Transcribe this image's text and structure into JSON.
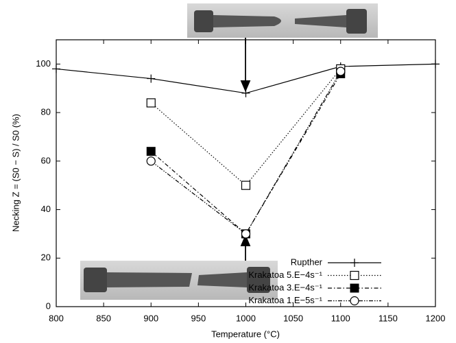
{
  "chart_data": {
    "type": "line",
    "x_label": "Temperature (°C)",
    "y_label": "Necking Z = (S0 − S) / S0 (%)",
    "xlim": [
      800,
      1200
    ],
    "xticks": [
      800,
      850,
      900,
      950,
      1000,
      1050,
      1100,
      1150,
      1200
    ],
    "ylim": [
      0,
      110
    ],
    "yticks": [
      0,
      20,
      40,
      60,
      80,
      100
    ],
    "legend": "lower right",
    "series": [
      {
        "name": "Rupther",
        "color": "#000000",
        "marker": "plus",
        "dash": "solid",
        "x": [
          800,
          900,
          1000,
          1100,
          1200
        ],
        "values": [
          98,
          94,
          88,
          99,
          100
        ]
      },
      {
        "name": "Krakatoa 5.E−4s⁻¹",
        "color": "#000000",
        "marker": "open-square",
        "dash": "dotted",
        "x": [
          900,
          1000,
          1100
        ],
        "values": [
          84,
          50,
          98
        ]
      },
      {
        "name": "Krakatoa 3.E−4s⁻¹",
        "color": "#000000",
        "marker": "filled-square",
        "dash": "dash-dot",
        "x": [
          900,
          1000,
          1100
        ],
        "values": [
          64,
          30,
          96
        ]
      },
      {
        "name": "Krakatoa 1.E−5s⁻¹",
        "color": "#000000",
        "marker": "open-circle",
        "dash": "dash-dot-dot",
        "x": [
          900,
          1000,
          1100
        ],
        "values": [
          60,
          30,
          97
        ]
      }
    ]
  }
}
